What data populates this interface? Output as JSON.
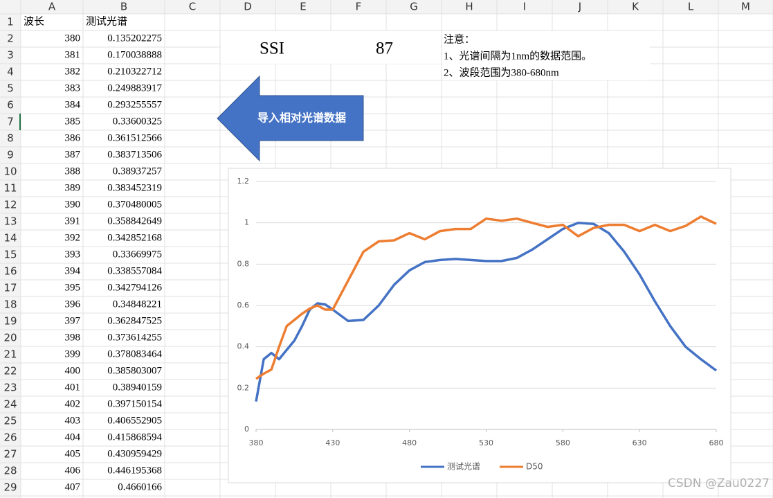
{
  "sheet": {
    "columns": [
      "A",
      "B",
      "C",
      "D",
      "E",
      "F",
      "G",
      "H",
      "I",
      "J",
      "K",
      "L",
      "M"
    ],
    "row_numbers": [
      1,
      2,
      3,
      4,
      5,
      6,
      7,
      8,
      9,
      10,
      11,
      12,
      13,
      14,
      15,
      16,
      17,
      18,
      19,
      20,
      21,
      22,
      23,
      24,
      25,
      26,
      27,
      28,
      29
    ],
    "header": [
      "波长",
      "测试光谱"
    ],
    "rows": [
      [
        380,
        0.135202275
      ],
      [
        381,
        0.170038888
      ],
      [
        382,
        0.210322712
      ],
      [
        383,
        0.249883917
      ],
      [
        384,
        0.293255557
      ],
      [
        385,
        0.33600325
      ],
      [
        386,
        0.361512566
      ],
      [
        387,
        0.383713506
      ],
      [
        388,
        0.38937257
      ],
      [
        389,
        0.383452319
      ],
      [
        390,
        0.370480005
      ],
      [
        391,
        0.358842649
      ],
      [
        392,
        0.342852168
      ],
      [
        393,
        0.33669975
      ],
      [
        394,
        0.338557084
      ],
      [
        395,
        0.342794126
      ],
      [
        396,
        0.34848221
      ],
      [
        397,
        0.362847525
      ],
      [
        398,
        0.373614255
      ],
      [
        399,
        0.378083464
      ],
      [
        400,
        0.385803007
      ],
      [
        401,
        0.38940159
      ],
      [
        402,
        0.397150154
      ],
      [
        403,
        0.406552905
      ],
      [
        404,
        0.415868594
      ],
      [
        405,
        0.430959429
      ],
      [
        406,
        0.446195368
      ],
      [
        407,
        0.4660166
      ]
    ]
  },
  "cells": {
    "ssi_label": "SSI",
    "ssi_value": 87,
    "notes": [
      "注意：",
      "1、光谱间隔为1nm的数据范围。",
      "2、波段范围为380-680nm"
    ]
  },
  "shape": {
    "label": "导入相对光谱数据"
  },
  "chart_data": {
    "type": "line",
    "x": [
      380,
      385,
      390,
      395,
      400,
      405,
      410,
      415,
      420,
      425,
      430,
      440,
      450,
      460,
      470,
      480,
      490,
      500,
      510,
      520,
      530,
      540,
      550,
      560,
      570,
      580,
      590,
      600,
      610,
      620,
      630,
      640,
      650,
      660,
      670,
      680
    ],
    "series": [
      {
        "name": "测试光谱",
        "color": "#4472c4",
        "values": [
          0.135,
          0.34,
          0.37,
          0.34,
          0.385,
          0.43,
          0.5,
          0.58,
          0.61,
          0.605,
          0.58,
          0.525,
          0.53,
          0.6,
          0.7,
          0.77,
          0.81,
          0.82,
          0.825,
          0.82,
          0.815,
          0.815,
          0.83,
          0.87,
          0.92,
          0.97,
          1.0,
          0.995,
          0.95,
          0.86,
          0.75,
          0.62,
          0.5,
          0.4,
          0.34,
          0.285
        ]
      },
      {
        "name": "D50",
        "color": "#ed7d31",
        "values": [
          0.245,
          0.27,
          0.29,
          0.4,
          0.5,
          0.53,
          0.56,
          0.585,
          0.6,
          0.58,
          0.58,
          0.72,
          0.86,
          0.91,
          0.915,
          0.95,
          0.92,
          0.96,
          0.97,
          0.97,
          1.02,
          1.01,
          1.02,
          1.0,
          0.98,
          0.99,
          0.935,
          0.975,
          0.99,
          0.99,
          0.96,
          0.99,
          0.96,
          0.985,
          1.03,
          0.995
        ]
      }
    ],
    "xlim": [
      380,
      680
    ],
    "xticks": [
      380,
      430,
      480,
      530,
      580,
      630,
      680
    ],
    "ylim": [
      0,
      1.2
    ],
    "yticks": [
      0,
      0.2,
      0.4,
      0.6,
      0.8,
      1,
      1.2
    ],
    "grid": true,
    "legend": "bottom"
  },
  "watermark": "CSDN @Zau0227"
}
